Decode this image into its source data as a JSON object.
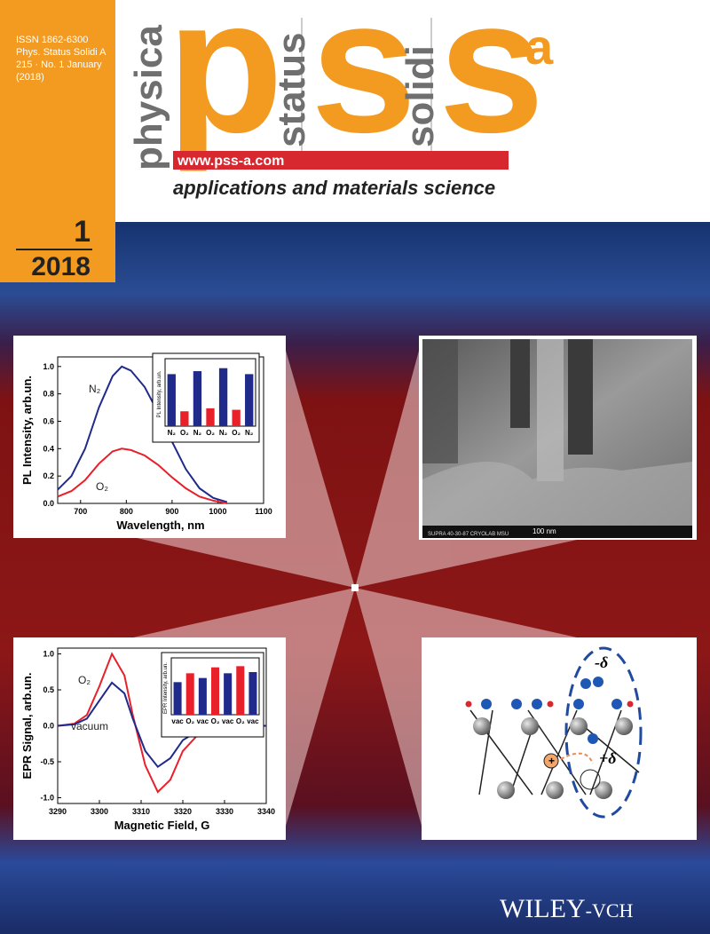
{
  "masthead": {
    "issn": "ISSN 1862-6300",
    "journal": "Phys. Status Solidi A",
    "issue_line": "215 · No. 1 January",
    "year_paren": "(2018)",
    "word1": "physica",
    "logo1": "p",
    "word2": "status",
    "logo2": "s",
    "word3": "solidi",
    "logo3": "s",
    "logo_sup": "a",
    "url": "www.pss-a.com",
    "subtitle": "applications and materials science",
    "issue_no": "1",
    "issue_year": "2018"
  },
  "sem_image": {
    "scale": "100 nm",
    "instrument": "SUPRA 40-30-87  CRYOLAB MSU"
  },
  "scheme": {
    "minus": "-δ",
    "plus": "+δ",
    "charge": "+"
  },
  "publisher": {
    "name": "WILEY",
    "suffix": "-VCH"
  },
  "chart_data": [
    {
      "type": "line",
      "x_label": "Wavelength, nm",
      "y_label": "PL Intensity, arb.un.",
      "x": [
        650,
        680,
        710,
        740,
        770,
        790,
        810,
        840,
        870,
        900,
        930,
        960,
        990,
        1020
      ],
      "series": [
        {
          "name": "N₂",
          "color": "#1f2a8a",
          "values": [
            0.1,
            0.2,
            0.4,
            0.7,
            0.93,
            1.0,
            0.97,
            0.85,
            0.66,
            0.45,
            0.25,
            0.11,
            0.04,
            0.01
          ]
        },
        {
          "name": "O₂",
          "color": "#e8202a",
          "values": [
            0.05,
            0.09,
            0.17,
            0.29,
            0.38,
            0.4,
            0.39,
            0.35,
            0.28,
            0.19,
            0.11,
            0.05,
            0.02,
            0.0
          ]
        }
      ],
      "xlim": [
        650,
        1100
      ],
      "xticks": [
        700,
        800,
        900,
        1000,
        1100
      ],
      "ylim": [
        0,
        1.07
      ],
      "yticks": [
        {
          "value": 0,
          "label": "0.0"
        },
        {
          "value": 0.2,
          "label": "0.2"
        },
        {
          "value": 0.4,
          "label": "0.4"
        },
        {
          "value": 0.6,
          "label": "0.6"
        },
        {
          "value": 0.8,
          "label": "0.8"
        },
        {
          "value": 1,
          "label": "1.0"
        }
      ]
    },
    {
      "type": "bar",
      "y_label": "PL Intensity, arb.un.",
      "categories": [
        "N₂",
        "O₂",
        "N₂",
        "O₂",
        "N₂",
        "O₂",
        "N₂"
      ],
      "values": [
        0.95,
        0.7,
        0.97,
        0.72,
        0.99,
        0.71,
        0.95
      ],
      "colors": [
        "#1f2a8a",
        "#e8202a",
        "#1f2a8a",
        "#e8202a",
        "#1f2a8a",
        "#e8202a",
        "#1f2a8a"
      ],
      "ylim": [
        0.6,
        1.03
      ]
    },
    {
      "type": "line",
      "x_label": "Magnetic Field, G",
      "y_label": "EPR Signal, arb.un.",
      "x": [
        3290,
        3294,
        3297,
        3300,
        3303,
        3306,
        3308,
        3311,
        3314,
        3317,
        3320,
        3324,
        3328,
        3332,
        3336,
        3340
      ],
      "series": [
        {
          "name": "O₂",
          "color": "#e8202a",
          "values": [
            0,
            0.03,
            0.15,
            0.55,
            1.0,
            0.7,
            0.15,
            -0.55,
            -0.92,
            -0.75,
            -0.35,
            -0.1,
            -0.03,
            -0.01,
            0,
            0
          ]
        },
        {
          "name": "vacuum",
          "color": "#1f2a8a",
          "values": [
            0,
            0.02,
            0.1,
            0.35,
            0.6,
            0.45,
            0.1,
            -0.35,
            -0.57,
            -0.45,
            -0.2,
            -0.06,
            -0.02,
            0,
            0,
            0
          ]
        }
      ],
      "xlim": [
        3290,
        3340
      ],
      "xticks": [
        3290,
        3300,
        3310,
        3320,
        3330,
        3340
      ],
      "ylim": [
        -1.08,
        1.08
      ],
      "yticks": [
        {
          "value": -1,
          "label": "-1.0"
        },
        {
          "value": -0.5,
          "label": "-0.5"
        },
        {
          "value": 0,
          "label": "0.0"
        },
        {
          "value": 0.5,
          "label": "0.5"
        },
        {
          "value": 1,
          "label": "1.0"
        }
      ]
    },
    {
      "type": "bar",
      "y_label": "EPR Intensity, arb.un.",
      "categories": [
        "vac",
        "O₂",
        "vac",
        "O₂",
        "vac",
        "O₂",
        "vac"
      ],
      "values": [
        0.55,
        0.7,
        0.62,
        0.8,
        0.7,
        0.82,
        0.72
      ],
      "colors": [
        "#1f2a8a",
        "#e8202a",
        "#1f2a8a",
        "#e8202a",
        "#1f2a8a",
        "#e8202a",
        "#1f2a8a"
      ],
      "ylim": [
        0,
        0.9
      ]
    }
  ]
}
